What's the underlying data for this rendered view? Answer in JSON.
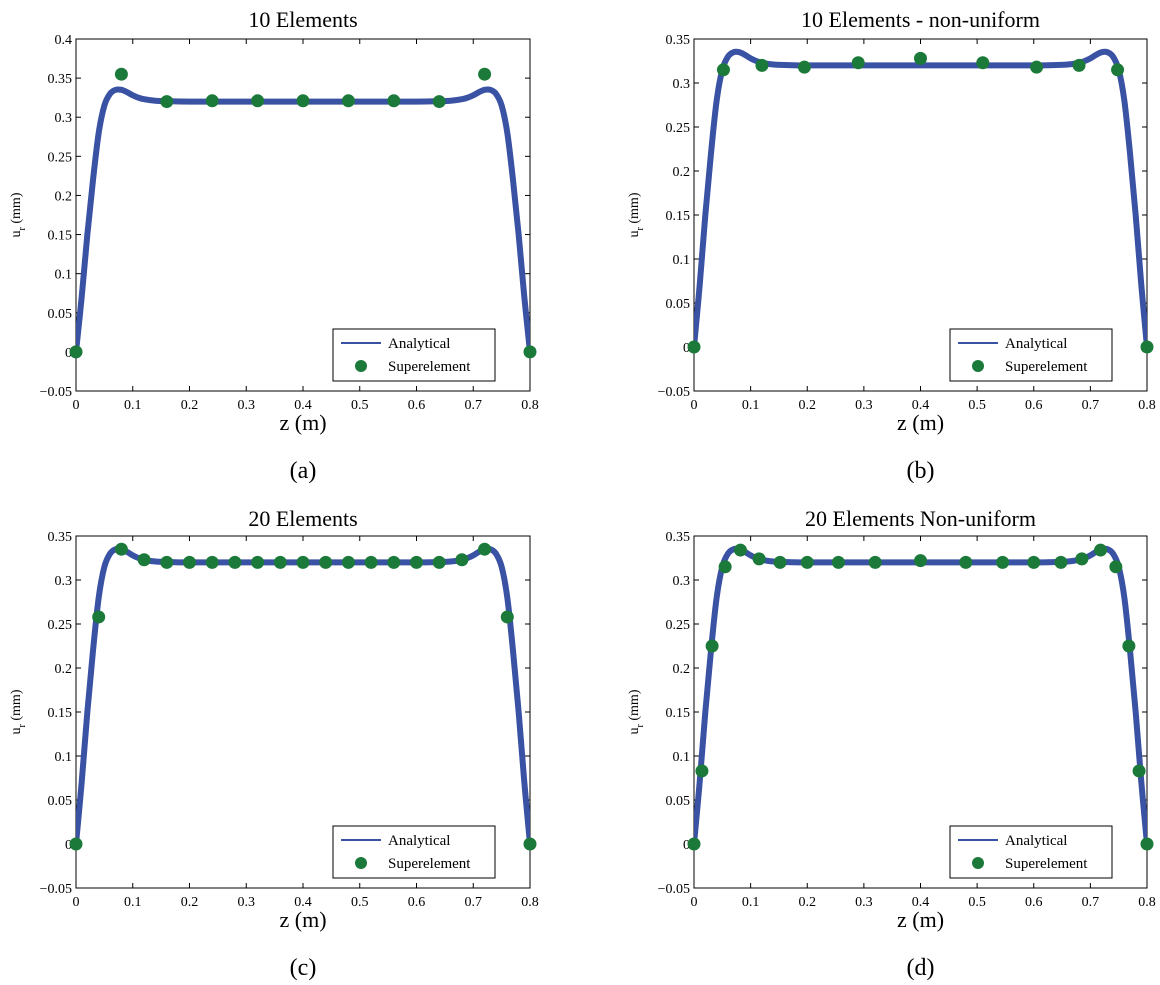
{
  "figure": {
    "panels": [
      {
        "id": "a",
        "caption": "(a)",
        "legend": {
          "analytical_label": "Analytical",
          "superelement_label": "Superelement"
        }
      },
      {
        "id": "b",
        "caption": "(b)",
        "legend": {
          "analytical_label": "Analytical",
          "superelement_label": "Superelement"
        }
      },
      {
        "id": "c",
        "caption": "(c)",
        "legend": {
          "analytical_label": "Analytical",
          "superelement_label": "Superelement"
        }
      },
      {
        "id": "d",
        "caption": "(d)",
        "legend": {
          "analytical_label": "Analytical",
          "superelement_label": "Superelement"
        }
      }
    ]
  },
  "chart_data": [
    {
      "type": "line",
      "title": "10 Elements",
      "xlabel": "z (m)",
      "ylabel": "u_r (mm)",
      "xlim": [
        0,
        0.8
      ],
      "ylim": [
        -0.05,
        0.4
      ],
      "xticks": [
        0,
        0.1,
        0.2,
        0.3,
        0.4,
        0.5,
        0.6,
        0.7,
        0.8
      ],
      "yticks": [
        -0.05,
        0,
        0.05,
        0.1,
        0.15,
        0.2,
        0.25,
        0.3,
        0.35,
        0.4
      ],
      "grid": false,
      "legend_position": "bottom-right",
      "colors": {
        "analytical": "#3a52a4",
        "superelement": "#1b7a3a"
      },
      "series": [
        {
          "name": "Analytical",
          "kind": "line",
          "x": [
            0,
            0.01,
            0.02,
            0.03,
            0.04,
            0.05,
            0.06,
            0.07,
            0.08,
            0.09,
            0.1,
            0.11,
            0.12,
            0.14,
            0.16,
            0.2,
            0.3,
            0.4,
            0.5,
            0.6,
            0.64,
            0.66,
            0.68,
            0.69,
            0.7,
            0.71,
            0.72,
            0.73,
            0.74,
            0.75,
            0.76,
            0.77,
            0.78,
            0.79,
            0.8
          ],
          "y": [
            0,
            0.07,
            0.15,
            0.22,
            0.28,
            0.315,
            0.33,
            0.335,
            0.335,
            0.332,
            0.328,
            0.325,
            0.323,
            0.321,
            0.3205,
            0.32,
            0.32,
            0.32,
            0.32,
            0.32,
            0.3205,
            0.321,
            0.323,
            0.325,
            0.328,
            0.332,
            0.335,
            0.335,
            0.33,
            0.315,
            0.28,
            0.22,
            0.15,
            0.07,
            0
          ]
        },
        {
          "name": "Superelement",
          "kind": "markers",
          "x": [
            0,
            0.08,
            0.16,
            0.24,
            0.32,
            0.4,
            0.48,
            0.56,
            0.64,
            0.72,
            0.8
          ],
          "y": [
            0,
            0.355,
            0.32,
            0.321,
            0.321,
            0.321,
            0.321,
            0.321,
            0.32,
            0.355,
            0
          ]
        }
      ]
    },
    {
      "type": "line",
      "title": "10 Elements - non-uniform",
      "xlabel": "z (m)",
      "ylabel": "u_r (mm)",
      "xlim": [
        0,
        0.8
      ],
      "ylim": [
        -0.05,
        0.35
      ],
      "xticks": [
        0,
        0.1,
        0.2,
        0.3,
        0.4,
        0.5,
        0.6,
        0.7,
        0.8
      ],
      "yticks": [
        -0.05,
        0,
        0.05,
        0.1,
        0.15,
        0.2,
        0.25,
        0.3,
        0.35
      ],
      "grid": false,
      "legend_position": "bottom-right",
      "colors": {
        "analytical": "#3a52a4",
        "superelement": "#1b7a3a"
      },
      "series": [
        {
          "name": "Analytical",
          "kind": "line",
          "x": [
            0,
            0.01,
            0.02,
            0.03,
            0.04,
            0.05,
            0.06,
            0.07,
            0.08,
            0.09,
            0.1,
            0.11,
            0.12,
            0.14,
            0.16,
            0.2,
            0.3,
            0.4,
            0.5,
            0.6,
            0.64,
            0.66,
            0.68,
            0.69,
            0.7,
            0.71,
            0.72,
            0.73,
            0.74,
            0.75,
            0.76,
            0.77,
            0.78,
            0.79,
            0.8
          ],
          "y": [
            0,
            0.07,
            0.15,
            0.22,
            0.28,
            0.315,
            0.33,
            0.335,
            0.335,
            0.332,
            0.328,
            0.325,
            0.323,
            0.321,
            0.3205,
            0.32,
            0.32,
            0.32,
            0.32,
            0.32,
            0.3205,
            0.321,
            0.323,
            0.325,
            0.328,
            0.332,
            0.335,
            0.335,
            0.33,
            0.315,
            0.28,
            0.22,
            0.15,
            0.07,
            0
          ]
        },
        {
          "name": "Superelement",
          "kind": "markers",
          "x": [
            0,
            0.052,
            0.12,
            0.195,
            0.29,
            0.4,
            0.51,
            0.605,
            0.68,
            0.748,
            0.8
          ],
          "y": [
            0,
            0.315,
            0.32,
            0.318,
            0.323,
            0.328,
            0.323,
            0.318,
            0.32,
            0.315,
            0
          ]
        }
      ]
    },
    {
      "type": "line",
      "title": "20 Elements",
      "xlabel": "z (m)",
      "ylabel": "u_r (mm)",
      "xlim": [
        0,
        0.8
      ],
      "ylim": [
        -0.05,
        0.35
      ],
      "xticks": [
        0,
        0.1,
        0.2,
        0.3,
        0.4,
        0.5,
        0.6,
        0.7,
        0.8
      ],
      "yticks": [
        -0.05,
        0,
        0.05,
        0.1,
        0.15,
        0.2,
        0.25,
        0.3,
        0.35
      ],
      "grid": false,
      "legend_position": "bottom-right",
      "colors": {
        "analytical": "#3a52a4",
        "superelement": "#1b7a3a"
      },
      "series": [
        {
          "name": "Analytical",
          "kind": "line",
          "x": [
            0,
            0.01,
            0.02,
            0.03,
            0.04,
            0.05,
            0.06,
            0.07,
            0.08,
            0.09,
            0.1,
            0.11,
            0.12,
            0.14,
            0.16,
            0.2,
            0.3,
            0.4,
            0.5,
            0.6,
            0.64,
            0.66,
            0.68,
            0.69,
            0.7,
            0.71,
            0.72,
            0.73,
            0.74,
            0.75,
            0.76,
            0.77,
            0.78,
            0.79,
            0.8
          ],
          "y": [
            0,
            0.07,
            0.15,
            0.22,
            0.28,
            0.315,
            0.33,
            0.335,
            0.335,
            0.332,
            0.328,
            0.325,
            0.323,
            0.321,
            0.3205,
            0.32,
            0.32,
            0.32,
            0.32,
            0.32,
            0.3205,
            0.321,
            0.323,
            0.325,
            0.328,
            0.332,
            0.335,
            0.335,
            0.33,
            0.315,
            0.28,
            0.22,
            0.15,
            0.07,
            0
          ]
        },
        {
          "name": "Superelement",
          "kind": "markers",
          "x": [
            0,
            0.04,
            0.08,
            0.12,
            0.16,
            0.2,
            0.24,
            0.28,
            0.32,
            0.36,
            0.4,
            0.44,
            0.48,
            0.52,
            0.56,
            0.6,
            0.64,
            0.68,
            0.72,
            0.76,
            0.8
          ],
          "y": [
            0,
            0.258,
            0.335,
            0.323,
            0.32,
            0.32,
            0.32,
            0.32,
            0.32,
            0.32,
            0.32,
            0.32,
            0.32,
            0.32,
            0.32,
            0.32,
            0.32,
            0.323,
            0.335,
            0.258,
            0
          ]
        }
      ]
    },
    {
      "type": "line",
      "title": "20 Elements Non-uniform",
      "xlabel": "z (m)",
      "ylabel": "u_r (mm)",
      "xlim": [
        0,
        0.8
      ],
      "ylim": [
        -0.05,
        0.35
      ],
      "xticks": [
        0,
        0.1,
        0.2,
        0.3,
        0.4,
        0.5,
        0.6,
        0.7,
        0.8
      ],
      "yticks": [
        -0.05,
        0,
        0.05,
        0.1,
        0.15,
        0.2,
        0.25,
        0.3,
        0.35
      ],
      "grid": false,
      "legend_position": "bottom-right",
      "colors": {
        "analytical": "#3a52a4",
        "superelement": "#1b7a3a"
      },
      "series": [
        {
          "name": "Analytical",
          "kind": "line",
          "x": [
            0,
            0.01,
            0.02,
            0.03,
            0.04,
            0.05,
            0.06,
            0.07,
            0.08,
            0.09,
            0.1,
            0.11,
            0.12,
            0.14,
            0.16,
            0.2,
            0.3,
            0.4,
            0.5,
            0.6,
            0.64,
            0.66,
            0.68,
            0.69,
            0.7,
            0.71,
            0.72,
            0.73,
            0.74,
            0.75,
            0.76,
            0.77,
            0.78,
            0.79,
            0.8
          ],
          "y": [
            0,
            0.07,
            0.15,
            0.22,
            0.28,
            0.315,
            0.33,
            0.335,
            0.335,
            0.332,
            0.328,
            0.325,
            0.323,
            0.321,
            0.3205,
            0.32,
            0.32,
            0.32,
            0.32,
            0.32,
            0.3205,
            0.321,
            0.323,
            0.325,
            0.328,
            0.332,
            0.335,
            0.335,
            0.33,
            0.315,
            0.28,
            0.22,
            0.15,
            0.07,
            0
          ]
        },
        {
          "name": "Superelement",
          "kind": "markers",
          "x": [
            0,
            0.014,
            0.032,
            0.055,
            0.082,
            0.115,
            0.152,
            0.2,
            0.255,
            0.32,
            0.4,
            0.48,
            0.545,
            0.6,
            0.648,
            0.685,
            0.718,
            0.745,
            0.768,
            0.786,
            0.8
          ],
          "y": [
            0,
            0.083,
            0.225,
            0.315,
            0.334,
            0.324,
            0.32,
            0.32,
            0.32,
            0.32,
            0.322,
            0.32,
            0.32,
            0.32,
            0.32,
            0.324,
            0.334,
            0.315,
            0.225,
            0.083,
            0
          ]
        }
      ]
    }
  ]
}
